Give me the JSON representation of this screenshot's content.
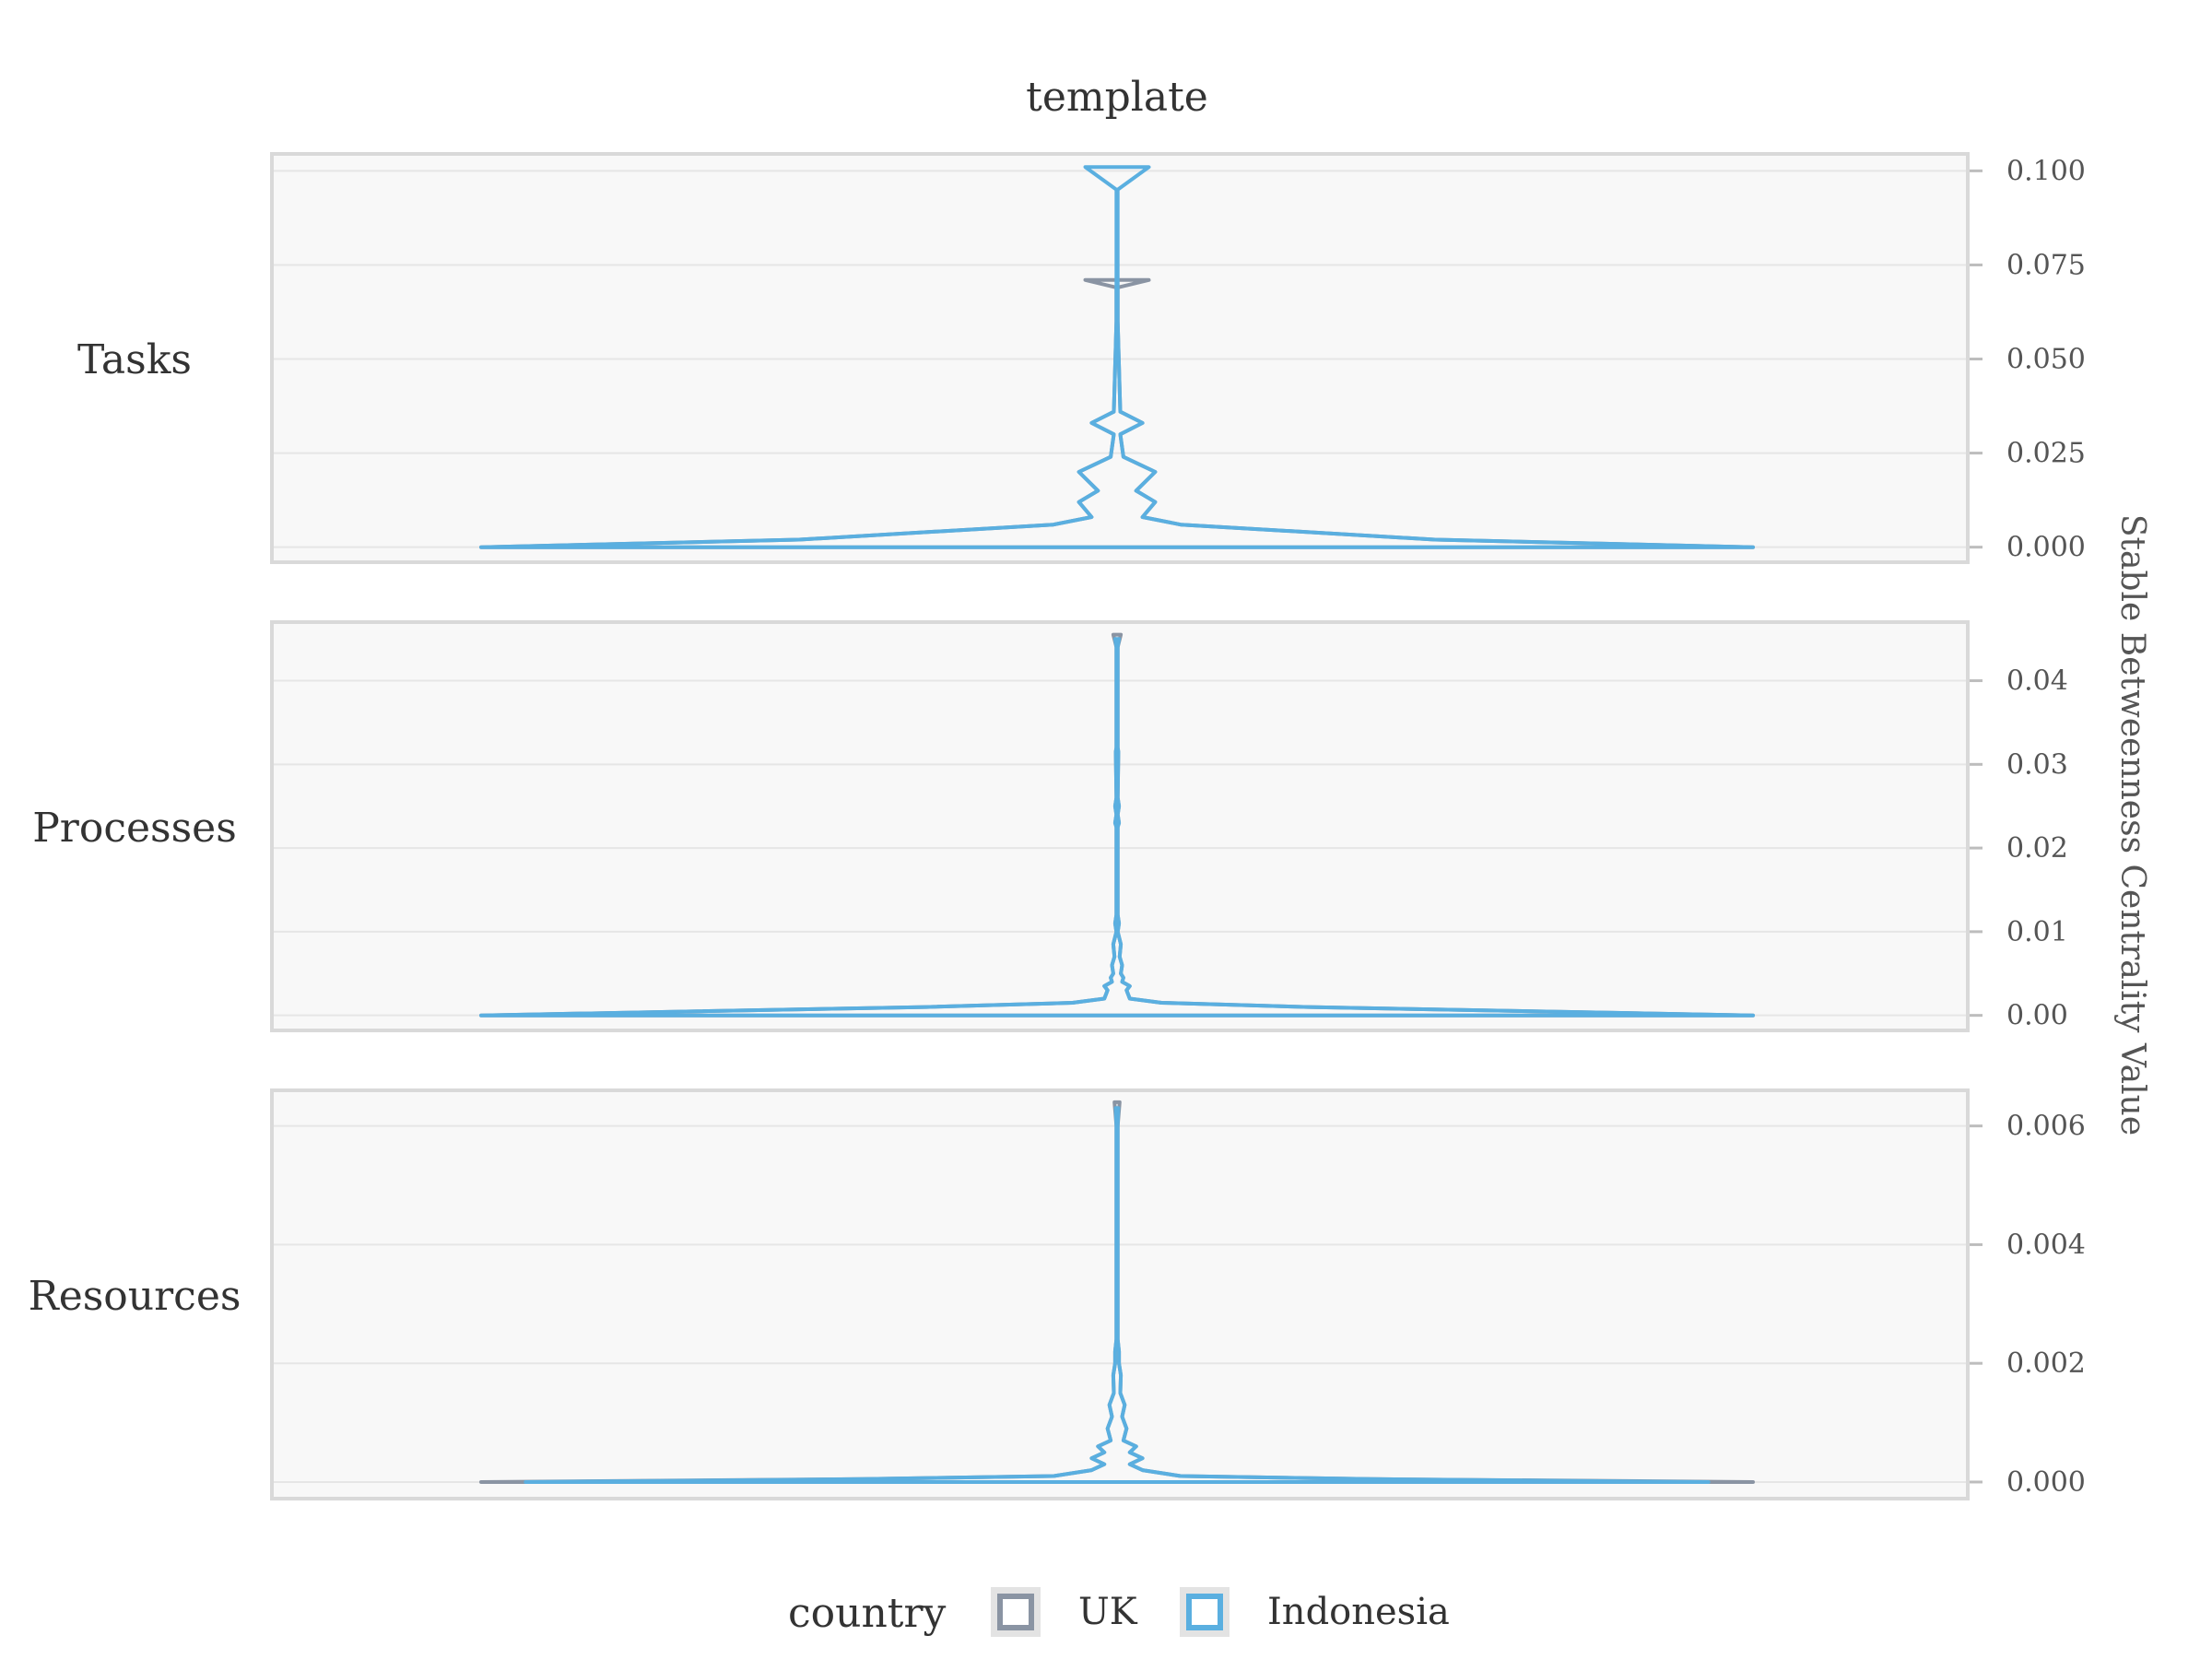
{
  "chart_data": {
    "type": "violin",
    "facet_title": "template",
    "ylabel": "Stable Betweenness Centrality Value",
    "legend": {
      "title": "country",
      "entries": [
        {
          "label": "UK",
          "color": "#8a94a3"
        },
        {
          "label": "Indonesia",
          "color": "#5aafe0"
        }
      ]
    },
    "panels": [
      {
        "label": "Tasks",
        "ylim": [
          -0.004,
          0.1045
        ],
        "ticks": [
          "0.000",
          "0.025",
          "0.050",
          "0.075",
          "0.100"
        ],
        "tick_values": [
          0,
          0.025,
          0.05,
          0.075,
          0.1
        ],
        "series": [
          {
            "name": "UK",
            "range": [
              0,
              0.071
            ],
            "profile": [
              [
                0,
                1
              ],
              [
                0.002,
                0.5
              ],
              [
                0.006,
                0.1
              ],
              [
                0.008,
                0.04
              ],
              [
                0.012,
                0.06
              ],
              [
                0.015,
                0.03
              ],
              [
                0.02,
                0.06
              ],
              [
                0.024,
                0.01
              ],
              [
                0.03,
                0.005
              ],
              [
                0.033,
                0.04
              ],
              [
                0.036,
                0.005
              ],
              [
                0.06,
                0.001
              ],
              [
                0.069,
                0.001
              ],
              [
                0.071,
                0.05
              ]
            ]
          },
          {
            "name": "Indonesia",
            "range": [
              0,
              0.101
            ],
            "profile": [
              [
                0,
                1
              ],
              [
                0.002,
                0.5
              ],
              [
                0.006,
                0.1
              ],
              [
                0.008,
                0.04
              ],
              [
                0.012,
                0.06
              ],
              [
                0.015,
                0.03
              ],
              [
                0.02,
                0.06
              ],
              [
                0.024,
                0.01
              ],
              [
                0.03,
                0.005
              ],
              [
                0.033,
                0.04
              ],
              [
                0.036,
                0.005
              ],
              [
                0.06,
                0.001
              ],
              [
                0.095,
                0.001
              ],
              [
                0.101,
                0.05
              ]
            ]
          }
        ]
      },
      {
        "label": "Processes",
        "ylim": [
          -0.0018,
          0.047
        ],
        "ticks": [
          "0.00",
          "0.01",
          "0.02",
          "0.03",
          "0.04"
        ],
        "tick_values": [
          0,
          0.01,
          0.02,
          0.03,
          0.04
        ],
        "series": [
          {
            "name": "UK",
            "range": [
              0,
              0.0455
            ],
            "profile": [
              [
                0,
                1
              ],
              [
                0.001,
                0.3
              ],
              [
                0.0015,
                0.07
              ],
              [
                0.002,
                0.02
              ],
              [
                0.003,
                0.015
              ],
              [
                0.0035,
                0.02
              ],
              [
                0.004,
                0.008
              ],
              [
                0.0045,
                0.01
              ],
              [
                0.005,
                0.006
              ],
              [
                0.006,
                0.008
              ],
              [
                0.007,
                0.004
              ],
              [
                0.0085,
                0.006
              ],
              [
                0.01,
                0.001
              ],
              [
                0.011,
                0.003
              ],
              [
                0.012,
                0.001
              ],
              [
                0.0225,
                0.001
              ],
              [
                0.023,
                0.003
              ],
              [
                0.024,
                0.001
              ],
              [
                0.025,
                0.003
              ],
              [
                0.026,
                0.001
              ],
              [
                0.0315,
                0.002
              ],
              [
                0.032,
                0.001
              ],
              [
                0.044,
                0.001
              ],
              [
                0.0455,
                0.006
              ]
            ]
          },
          {
            "name": "Indonesia",
            "range": [
              0,
              0.045
            ],
            "profile": [
              [
                0,
                1
              ],
              [
                0.001,
                0.3
              ],
              [
                0.0015,
                0.07
              ],
              [
                0.002,
                0.02
              ],
              [
                0.003,
                0.015
              ],
              [
                0.0035,
                0.02
              ],
              [
                0.004,
                0.008
              ],
              [
                0.0045,
                0.01
              ],
              [
                0.005,
                0.006
              ],
              [
                0.006,
                0.008
              ],
              [
                0.007,
                0.004
              ],
              [
                0.0085,
                0.006
              ],
              [
                0.01,
                0.001
              ],
              [
                0.011,
                0.003
              ],
              [
                0.012,
                0.001
              ],
              [
                0.0225,
                0.001
              ],
              [
                0.023,
                0.003
              ],
              [
                0.024,
                0.001
              ],
              [
                0.025,
                0.003
              ],
              [
                0.026,
                0.001
              ],
              [
                0.0315,
                0.002
              ],
              [
                0.032,
                0.001
              ],
              [
                0.044,
                0.001
              ],
              [
                0.045,
                0.003
              ]
            ]
          }
        ]
      },
      {
        "label": "Resources",
        "ylim": [
          -0.00028,
          0.0066
        ],
        "ticks": [
          "0.000",
          "0.002",
          "0.004",
          "0.006"
        ],
        "tick_values": [
          0,
          0.002,
          0.004,
          0.006
        ],
        "series": [
          {
            "name": "UK",
            "range": [
              0,
              0.0064
            ],
            "profile": [
              [
                0,
                1
              ],
              [
                5e-05,
                0.4
              ],
              [
                0.0001,
                0.1
              ],
              [
                0.0002,
                0.04
              ],
              [
                0.0003,
                0.02
              ],
              [
                0.0004,
                0.04
              ],
              [
                0.0005,
                0.02
              ],
              [
                0.0006,
                0.03
              ],
              [
                0.0007,
                0.01
              ],
              [
                0.0009,
                0.015
              ],
              [
                0.0011,
                0.008
              ],
              [
                0.0013,
                0.012
              ],
              [
                0.0015,
                0.005
              ],
              [
                0.0018,
                0.006
              ],
              [
                0.002,
                0.003
              ],
              [
                0.0022,
                0.003
              ],
              [
                0.0024,
                0.001
              ],
              [
                0.006,
                0.001
              ],
              [
                0.0064,
                0.004
              ]
            ]
          },
          {
            "name": "Indonesia",
            "range": [
              0,
              0.0063
            ],
            "profile": [
              [
                0,
                0.93
              ],
              [
                5e-05,
                0.4
              ],
              [
                0.0001,
                0.1
              ],
              [
                0.0002,
                0.04
              ],
              [
                0.0003,
                0.02
              ],
              [
                0.0004,
                0.04
              ],
              [
                0.0005,
                0.02
              ],
              [
                0.0006,
                0.03
              ],
              [
                0.0007,
                0.01
              ],
              [
                0.0009,
                0.015
              ],
              [
                0.0011,
                0.008
              ],
              [
                0.0013,
                0.012
              ],
              [
                0.0015,
                0.005
              ],
              [
                0.0018,
                0.006
              ],
              [
                0.002,
                0.003
              ],
              [
                0.0022,
                0.003
              ],
              [
                0.0024,
                0.001
              ],
              [
                0.006,
                0.001
              ],
              [
                0.0063,
                0.002
              ]
            ]
          }
        ]
      }
    ]
  }
}
